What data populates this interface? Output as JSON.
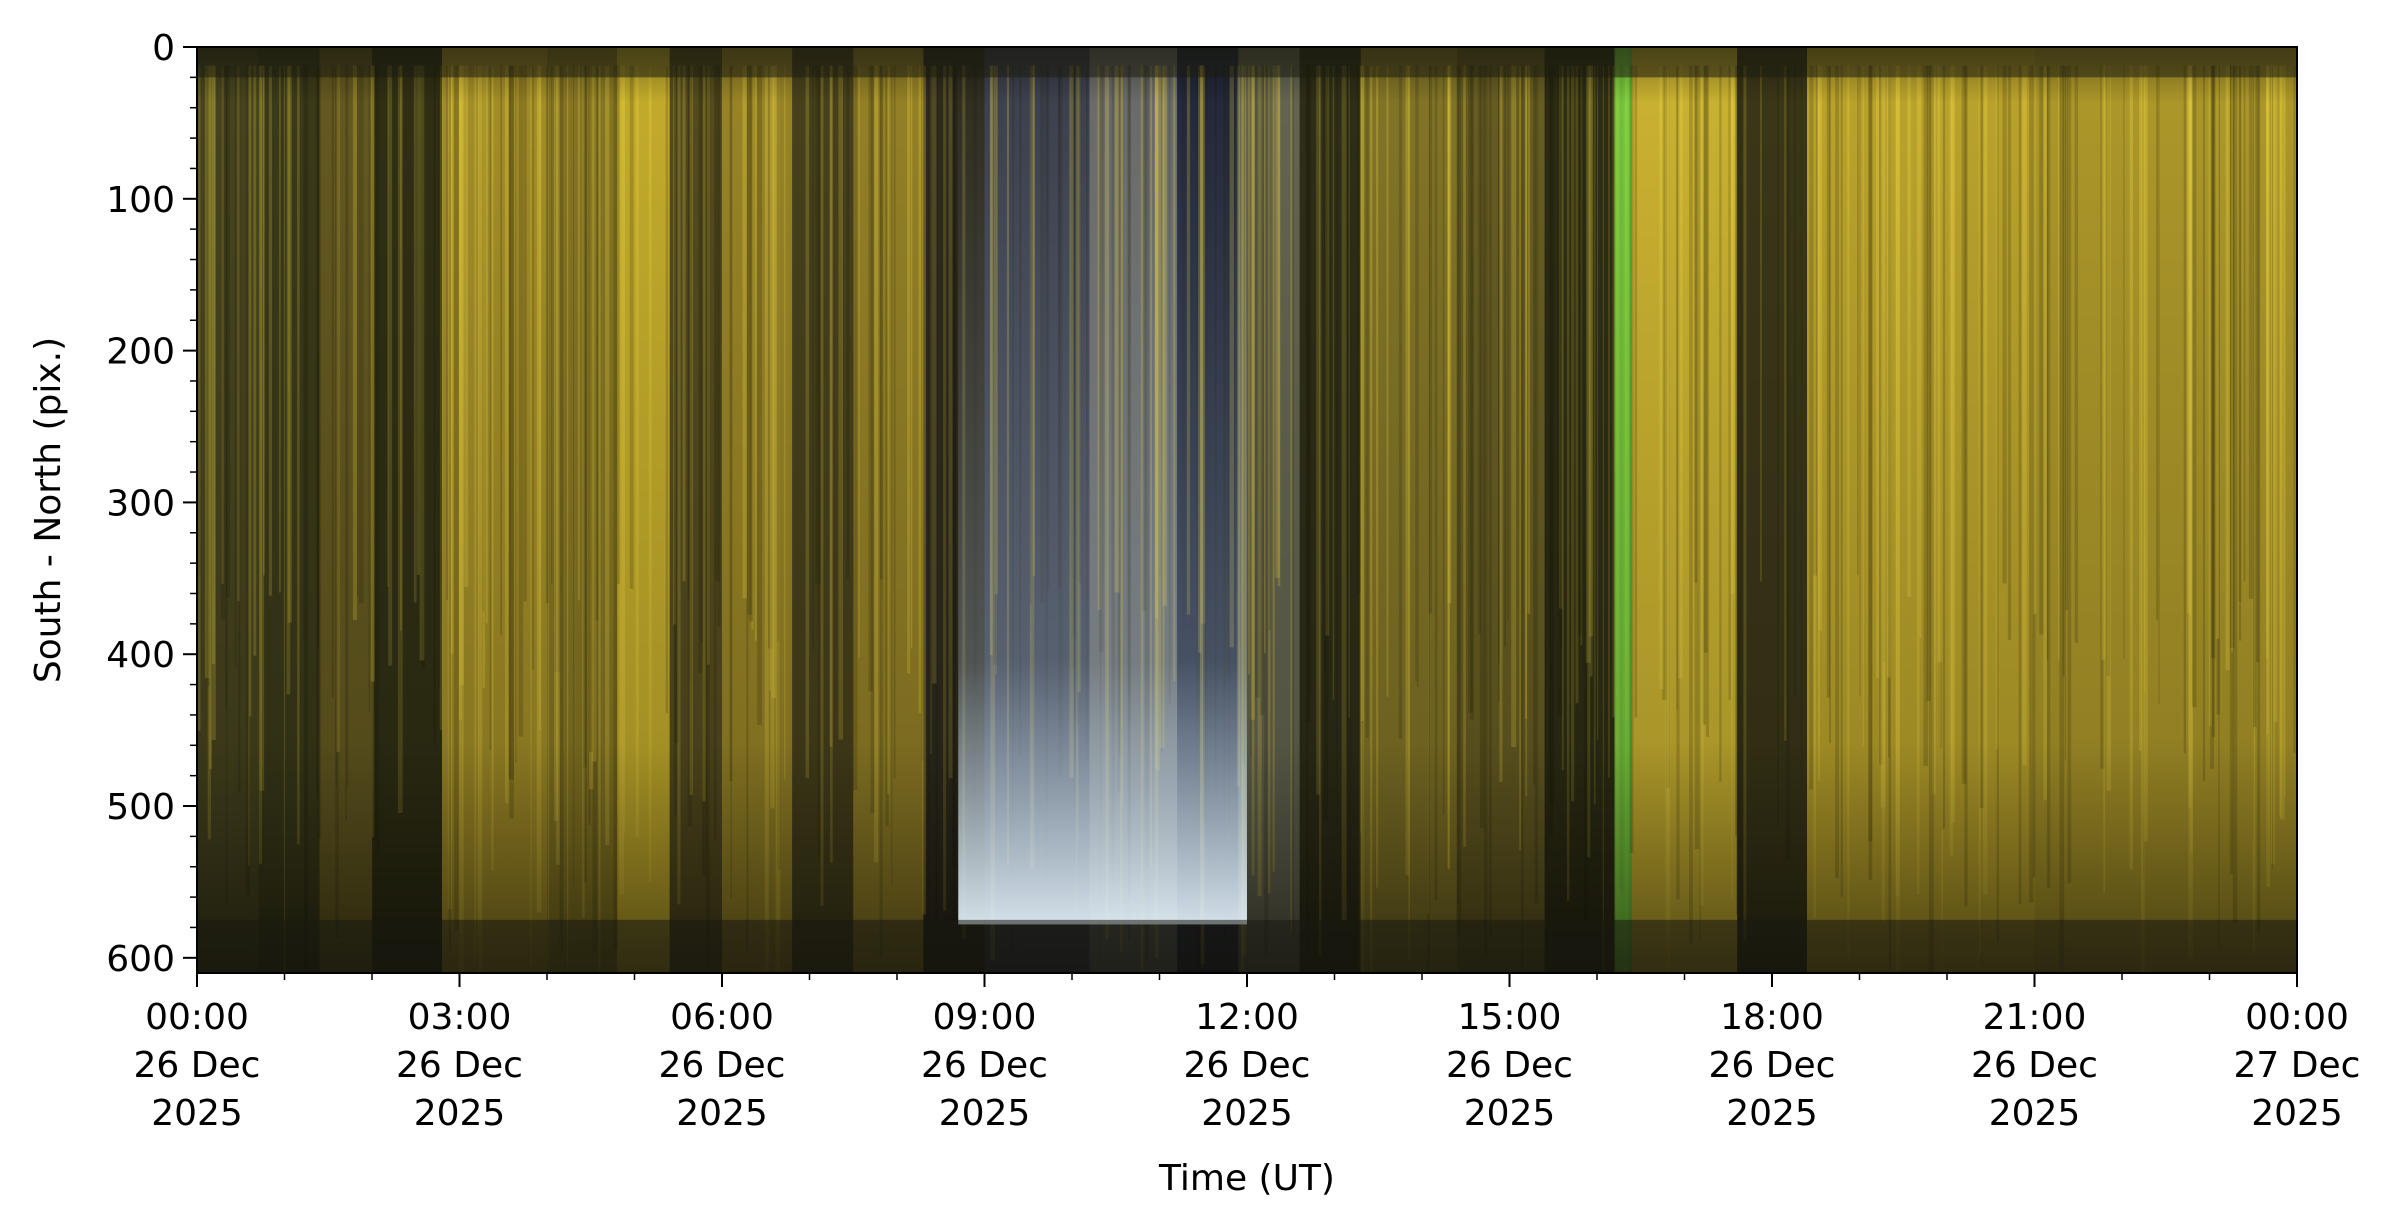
{
  "chart_data": {
    "type": "heatmap",
    "title": "",
    "xlabel": "Time (UT)",
    "ylabel": "South - North (pix.)",
    "ylim": [
      0,
      610
    ],
    "y_inverted": true,
    "y_ticks": [
      0,
      100,
      200,
      300,
      400,
      500,
      600
    ],
    "x_range_hours": [
      0,
      24
    ],
    "x_ticks": [
      {
        "hour": 0,
        "lines": [
          "00:00",
          "26 Dec",
          "2025"
        ]
      },
      {
        "hour": 3,
        "lines": [
          "03:00",
          "26 Dec",
          "2025"
        ]
      },
      {
        "hour": 6,
        "lines": [
          "06:00",
          "26 Dec",
          "2025"
        ]
      },
      {
        "hour": 9,
        "lines": [
          "09:00",
          "26 Dec",
          "2025"
        ]
      },
      {
        "hour": 12,
        "lines": [
          "12:00",
          "26 Dec",
          "2025"
        ]
      },
      {
        "hour": 15,
        "lines": [
          "15:00",
          "26 Dec",
          "2025"
        ]
      },
      {
        "hour": 18,
        "lines": [
          "18:00",
          "26 Dec",
          "2025"
        ]
      },
      {
        "hour": 21,
        "lines": [
          "21:00",
          "26 Dec",
          "2025"
        ]
      },
      {
        "hour": 24,
        "lines": [
          "00:00",
          "27 Dec",
          "2025"
        ]
      }
    ],
    "legend": "none",
    "grid": false,
    "colors": {
      "yellow": "#cdb42e",
      "dark_olive": "#2a2a12",
      "navy": "#1a2040",
      "blue": "#3c6a98",
      "green": "#6fc83c",
      "white_blue": "#c8e4ff"
    },
    "bands": [
      {
        "start": 0.0,
        "end": 0.7,
        "color": "#4a4620",
        "intensity": 0.5
      },
      {
        "start": 0.7,
        "end": 1.4,
        "color": "#3a3a1a",
        "intensity": 0.4
      },
      {
        "start": 1.4,
        "end": 2.0,
        "color": "#6b5e22",
        "intensity": 0.6
      },
      {
        "start": 2.0,
        "end": 2.8,
        "color": "#2c2c14",
        "intensity": 0.3
      },
      {
        "start": 2.8,
        "end": 4.0,
        "color": "#a89228",
        "intensity": 0.85
      },
      {
        "start": 4.0,
        "end": 4.8,
        "color": "#8e7c24",
        "intensity": 0.75
      },
      {
        "start": 4.8,
        "end": 5.4,
        "color": "#c4ac2c",
        "intensity": 0.95
      },
      {
        "start": 5.4,
        "end": 6.0,
        "color": "#5a5020",
        "intensity": 0.5
      },
      {
        "start": 6.0,
        "end": 6.8,
        "color": "#a08a28",
        "intensity": 0.8
      },
      {
        "start": 6.8,
        "end": 7.5,
        "color": "#4a421c",
        "intensity": 0.45
      },
      {
        "start": 7.5,
        "end": 8.3,
        "color": "#9a8628",
        "intensity": 0.8
      },
      {
        "start": 8.3,
        "end": 9.0,
        "color": "#2a2620",
        "intensity": 0.3
      },
      {
        "start": 9.0,
        "end": 10.2,
        "color": "#3a3e55",
        "intensity": 0.55
      },
      {
        "start": 10.2,
        "end": 11.2,
        "color": "#6e6e70",
        "intensity": 0.7
      },
      {
        "start": 11.2,
        "end": 11.9,
        "color": "#1a2040",
        "intensity": 0.5
      },
      {
        "start": 11.9,
        "end": 12.6,
        "color": "#6a6a58",
        "intensity": 0.65
      },
      {
        "start": 12.6,
        "end": 13.3,
        "color": "#2a2a18",
        "intensity": 0.3
      },
      {
        "start": 13.3,
        "end": 14.4,
        "color": "#8a7a28",
        "intensity": 0.75
      },
      {
        "start": 14.4,
        "end": 15.4,
        "color": "#6e6224",
        "intensity": 0.65
      },
      {
        "start": 15.4,
        "end": 16.2,
        "color": "#2a2a14",
        "intensity": 0.3
      },
      {
        "start": 16.2,
        "end": 16.4,
        "color": "#6fc83c",
        "intensity": 0.9
      },
      {
        "start": 16.4,
        "end": 17.6,
        "color": "#c8b030",
        "intensity": 1.0
      },
      {
        "start": 17.6,
        "end": 18.4,
        "color": "#3a3618",
        "intensity": 0.35
      },
      {
        "start": 18.4,
        "end": 21.0,
        "color": "#bca42c",
        "intensity": 0.95
      },
      {
        "start": 21.0,
        "end": 24.0,
        "color": "#b09a2a",
        "intensity": 0.9
      }
    ]
  }
}
